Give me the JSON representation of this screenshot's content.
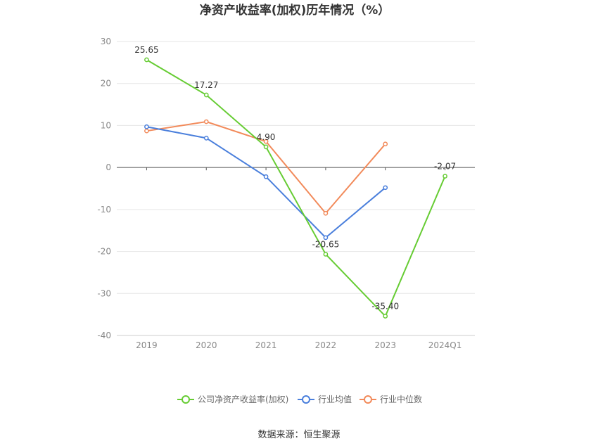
{
  "chart_data": {
    "type": "line",
    "title": "净资产收益率(加权)历年情况（%）",
    "categories": [
      "2019",
      "2020",
      "2021",
      "2022",
      "2023",
      "2024Q1"
    ],
    "ylim": [
      -40,
      30
    ],
    "yticks": [
      30,
      20,
      10,
      0,
      -10,
      -20,
      -30,
      -40
    ],
    "grid": true,
    "legend_position": "bottom",
    "series": [
      {
        "name": "公司净资产收益率(加权)",
        "color": "#66cc33",
        "values": [
          25.65,
          17.27,
          4.9,
          -20.65,
          -35.4,
          -2.07
        ],
        "labels": [
          "25.65",
          "17.27",
          "4.90",
          "-20.65",
          "-35.40",
          "-2.07"
        ]
      },
      {
        "name": "行业均值",
        "color": "#4a7fdc",
        "values": [
          9.7,
          7.0,
          -2.2,
          -16.7,
          -4.8,
          null
        ]
      },
      {
        "name": "行业中位数",
        "color": "#f28a5a",
        "values": [
          8.7,
          10.9,
          6.2,
          -10.9,
          5.6,
          null
        ]
      }
    ]
  },
  "source": "数据来源：恒生聚源"
}
